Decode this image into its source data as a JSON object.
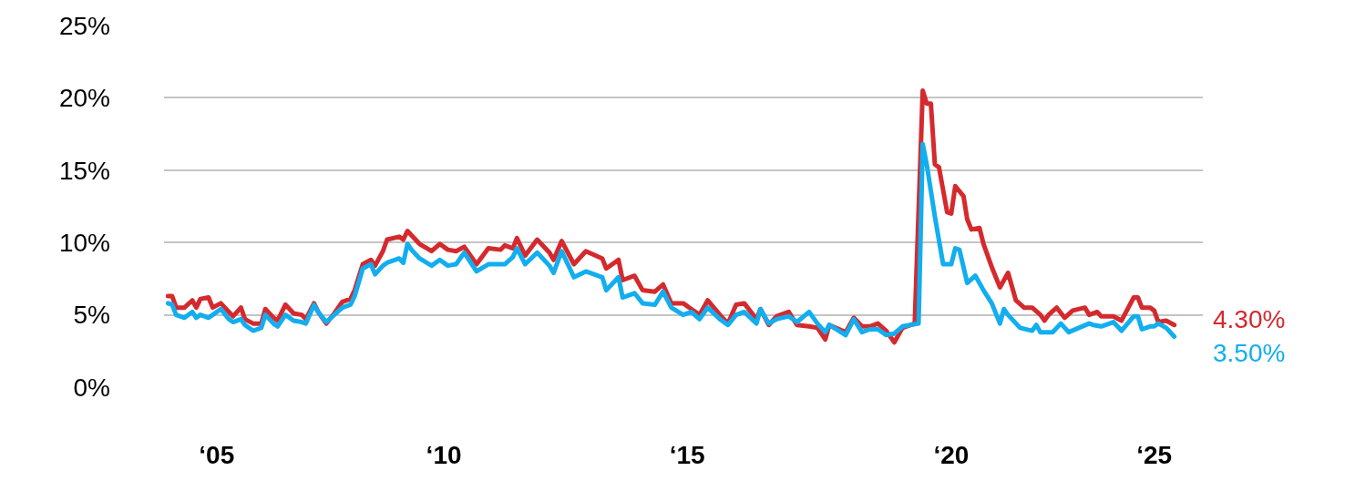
{
  "chart_data": {
    "type": "line",
    "xlim": [
      "2004-09-01",
      "2026-01-01"
    ],
    "ylim": [
      0,
      25
    ],
    "xticks": [
      {
        "value": "2005-10",
        "label": "‘05"
      },
      {
        "value": "2010-06",
        "label": "‘10"
      },
      {
        "value": "2015-06",
        "label": "‘15"
      },
      {
        "value": "2020-11",
        "label": "‘20"
      },
      {
        "value": "2025-01",
        "label": "‘25"
      }
    ],
    "yticks": [
      {
        "value": 0,
        "label": "0%"
      },
      {
        "value": 5,
        "label": "5%"
      },
      {
        "value": 10,
        "label": "10%"
      },
      {
        "value": 15,
        "label": "15%"
      },
      {
        "value": 20,
        "label": "20%"
      },
      {
        "value": 25,
        "label": "25%"
      }
    ],
    "grid": "y",
    "marker": "none",
    "line_style": "solid",
    "series": [
      {
        "color": "#d42a2e",
        "x": [
          "2004-10",
          "2004-11",
          "2004-12",
          "2005-02",
          "2005-04",
          "2005-05",
          "2005-06",
          "2005-08",
          "2005-09",
          "2005-11",
          "2006-01",
          "2006-02",
          "2006-04",
          "2006-05",
          "2006-07",
          "2006-09",
          "2006-10",
          "2006-12",
          "2007-01",
          "2007-03",
          "2007-05",
          "2007-07",
          "2007-08",
          "2007-10",
          "2007-11",
          "2008-01",
          "2008-03",
          "2008-05",
          "2008-07",
          "2008-08",
          "2008-10",
          "2008-12",
          "2009-01",
          "2009-03",
          "2009-04",
          "2009-07",
          "2009-08",
          "2009-09",
          "2009-10",
          "2009-12",
          "2010-03",
          "2010-05",
          "2010-07",
          "2010-09",
          "2010-11",
          "2011-02",
          "2011-05",
          "2011-08",
          "2011-09",
          "2011-11",
          "2011-12",
          "2012-02",
          "2012-05",
          "2012-08",
          "2012-09",
          "2012-11",
          "2013-02",
          "2013-05",
          "2013-09",
          "2013-10",
          "2014-01",
          "2014-02",
          "2014-05",
          "2014-07",
          "2014-10",
          "2014-12",
          "2015-02",
          "2015-05",
          "2015-07",
          "2015-09",
          "2015-11",
          "2016-02",
          "2016-04",
          "2016-06",
          "2016-08",
          "2016-11",
          "2016-12",
          "2017-02",
          "2017-04",
          "2017-07",
          "2017-09",
          "2017-12",
          "2018-02",
          "2018-04",
          "2018-05",
          "2018-09",
          "2018-11",
          "2019-01",
          "2019-03",
          "2019-05",
          "2019-07",
          "2019-09",
          "2019-11",
          "2020-02",
          "2020-04",
          "2020-05",
          "2020-06",
          "2020-07",
          "2020-08",
          "2020-10",
          "2020-11",
          "2020-12",
          "2021-02",
          "2021-03",
          "2021-04",
          "2021-06",
          "2021-07",
          "2021-09",
          "2021-11",
          "2022-01",
          "2022-03",
          "2022-05",
          "2022-07",
          "2022-09",
          "2022-10",
          "2022-11",
          "2023-01",
          "2023-03",
          "2023-05",
          "2023-08",
          "2023-09",
          "2023-11",
          "2023-12",
          "2024-03",
          "2024-05",
          "2024-08",
          "2024-09",
          "2024-10",
          "2024-12",
          "2025-01",
          "2025-02",
          "2025-04",
          "2025-06"
        ],
        "values": [
          6.3,
          6.3,
          5.5,
          5.5,
          6.0,
          5.5,
          6.1,
          6.2,
          5.5,
          5.8,
          5.2,
          4.9,
          5.5,
          4.7,
          4.4,
          4.4,
          5.4,
          4.8,
          4.6,
          5.7,
          5.1,
          5.0,
          4.7,
          5.8,
          5.2,
          4.4,
          5.1,
          5.9,
          6.1,
          6.7,
          8.5,
          8.8,
          8.4,
          9.4,
          10.2,
          10.4,
          10.2,
          10.8,
          10.5,
          9.9,
          9.4,
          9.9,
          9.5,
          9.4,
          9.7,
          8.5,
          9.6,
          9.5,
          9.8,
          9.6,
          10.3,
          9.1,
          10.2,
          9.3,
          8.8,
          10.1,
          8.5,
          9.4,
          8.9,
          8.2,
          8.8,
          7.4,
          7.7,
          6.7,
          6.6,
          7.1,
          5.8,
          5.8,
          5.4,
          5.0,
          6.0,
          5.0,
          4.4,
          5.7,
          5.8,
          4.7,
          5.4,
          4.3,
          4.9,
          5.2,
          4.3,
          4.2,
          4.1,
          3.3,
          4.3,
          3.8,
          4.8,
          4.2,
          4.2,
          4.4,
          3.9,
          3.1,
          4.1,
          4.4,
          20.5,
          19.6,
          19.6,
          15.4,
          15.2,
          12.1,
          12.0,
          13.9,
          13.2,
          11.6,
          10.9,
          11.0,
          9.9,
          8.3,
          6.9,
          7.9,
          6.0,
          5.5,
          5.5,
          5.0,
          4.6,
          5.0,
          5.5,
          4.8,
          5.3,
          5.5,
          5.0,
          5.2,
          4.9,
          4.9,
          4.6,
          6.2,
          6.2,
          5.5,
          5.5,
          5.3,
          4.5,
          4.6,
          4.3
        ]
      },
      {
        "color": "#12aeef",
        "x": [
          "2004-10",
          "2004-11",
          "2004-12",
          "2005-02",
          "2005-04",
          "2005-05",
          "2005-06",
          "2005-08",
          "2005-09",
          "2005-11",
          "2006-01",
          "2006-02",
          "2006-04",
          "2006-05",
          "2006-07",
          "2006-09",
          "2006-10",
          "2006-12",
          "2007-01",
          "2007-03",
          "2007-05",
          "2007-07",
          "2007-08",
          "2007-10",
          "2007-11",
          "2008-01",
          "2008-03",
          "2008-05",
          "2008-07",
          "2008-08",
          "2008-10",
          "2008-12",
          "2009-01",
          "2009-03",
          "2009-04",
          "2009-07",
          "2009-08",
          "2009-09",
          "2009-10",
          "2009-12",
          "2010-03",
          "2010-05",
          "2010-07",
          "2010-09",
          "2010-11",
          "2011-02",
          "2011-05",
          "2011-08",
          "2011-09",
          "2011-11",
          "2011-12",
          "2012-02",
          "2012-05",
          "2012-08",
          "2012-09",
          "2012-11",
          "2013-02",
          "2013-05",
          "2013-09",
          "2013-10",
          "2014-01",
          "2014-02",
          "2014-05",
          "2014-07",
          "2014-10",
          "2014-12",
          "2015-02",
          "2015-05",
          "2015-07",
          "2015-09",
          "2015-11",
          "2016-02",
          "2016-04",
          "2016-06",
          "2016-08",
          "2016-11",
          "2016-12",
          "2017-02",
          "2017-04",
          "2017-07",
          "2017-09",
          "2017-12",
          "2018-02",
          "2018-04",
          "2018-05",
          "2018-09",
          "2018-11",
          "2019-01",
          "2019-03",
          "2019-05",
          "2019-07",
          "2019-09",
          "2019-11",
          "2020-03",
          "2020-04",
          "2020-05",
          "2020-07",
          "2020-09",
          "2020-11",
          "2020-12",
          "2021-01",
          "2021-03",
          "2021-05",
          "2021-07",
          "2021-09",
          "2021-11",
          "2021-12",
          "2022-01",
          "2022-04",
          "2022-07",
          "2022-08",
          "2022-09",
          "2022-12",
          "2023-02",
          "2023-04",
          "2023-09",
          "2023-10",
          "2023-12",
          "2024-03",
          "2024-05",
          "2024-08",
          "2024-09",
          "2024-10",
          "2024-12",
          "2025-01",
          "2025-02",
          "2025-04",
          "2025-06"
        ],
        "values": [
          5.8,
          5.7,
          5.0,
          4.8,
          5.2,
          4.8,
          5.0,
          4.8,
          5.0,
          5.4,
          4.7,
          4.5,
          4.7,
          4.3,
          3.9,
          4.1,
          5.0,
          4.4,
          4.2,
          5.0,
          4.6,
          4.5,
          4.4,
          5.7,
          5.2,
          4.5,
          5.0,
          5.5,
          5.7,
          6.3,
          8.2,
          8.5,
          7.8,
          8.4,
          8.6,
          8.9,
          8.6,
          9.9,
          9.5,
          8.9,
          8.4,
          8.8,
          8.4,
          8.5,
          9.3,
          8.0,
          8.5,
          8.5,
          8.5,
          9.0,
          9.6,
          8.5,
          9.3,
          8.4,
          7.9,
          9.4,
          7.6,
          8.0,
          7.6,
          6.7,
          7.6,
          6.2,
          6.5,
          5.8,
          5.7,
          6.6,
          5.5,
          5.0,
          5.2,
          4.7,
          5.5,
          4.7,
          4.3,
          5.0,
          5.2,
          4.4,
          5.4,
          4.4,
          4.7,
          4.9,
          4.5,
          5.2,
          4.4,
          3.8,
          4.3,
          3.6,
          4.7,
          3.8,
          4.0,
          4.0,
          3.6,
          3.7,
          4.2,
          4.4,
          16.8,
          15.4,
          11.8,
          8.5,
          8.5,
          9.6,
          9.5,
          7.2,
          7.7,
          6.7,
          5.8,
          4.4,
          5.4,
          5.0,
          4.1,
          3.9,
          4.3,
          3.8,
          3.8,
          4.4,
          3.8,
          4.4,
          4.3,
          4.2,
          4.5,
          3.9,
          4.9,
          4.9,
          4.0,
          4.2,
          4.2,
          4.4,
          4.1,
          3.5
        ]
      }
    ],
    "annotations": [
      {
        "text": "4.30%",
        "x": "2025-06",
        "y": 4.3
      },
      {
        "text": "3.50%",
        "x": "2025-06",
        "y": 3.5
      }
    ]
  }
}
